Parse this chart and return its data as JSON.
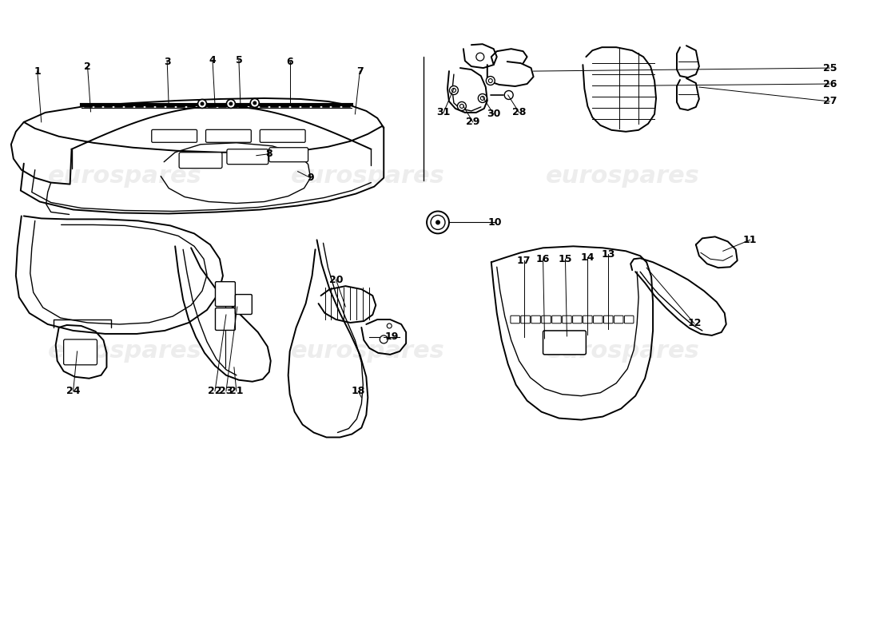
{
  "bg_color": "#ffffff",
  "lc": "#000000",
  "watermark_text": "eurospares",
  "wm_color": "#cccccc",
  "wm_alpha": 0.35,
  "fig_w": 11.0,
  "fig_h": 8.0,
  "dpi": 100
}
